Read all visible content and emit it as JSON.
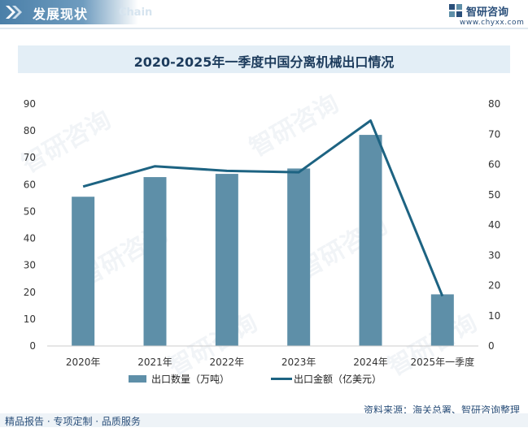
{
  "header": {
    "section_title": "发展现状",
    "section_sub": "Chain",
    "brand_name": "智研咨询",
    "brand_url": "www.chyxx.com"
  },
  "chart_data": {
    "type": "bar",
    "title": "2020-2025年一季度中国分离机械出口情况",
    "categories": [
      "2020年",
      "2021年",
      "2022年",
      "2023年",
      "2024年",
      "2025年一季度"
    ],
    "series": [
      {
        "name": "出口数量（万吨）",
        "kind": "bar",
        "axis": "left",
        "values": [
          55.5,
          62.8,
          64.0,
          66.0,
          78.5,
          19.2
        ],
        "color": "#5e8fa8"
      },
      {
        "name": "出口金额（亿美元）",
        "kind": "line",
        "axis": "right",
        "values": [
          52.7,
          59.4,
          57.9,
          57.4,
          74.5,
          16.5
        ],
        "color": "#1d6382"
      }
    ],
    "y_left": {
      "min": 0,
      "max": 90,
      "step": 10
    },
    "y_right": {
      "min": 0,
      "max": 80,
      "step": 10
    },
    "grid": false,
    "legend_position": "bottom"
  },
  "legend": {
    "bar_label": "出口数量（万吨）",
    "line_label": "出口金额（亿美元）"
  },
  "source": "资料来源：海关总署、智研咨询整理",
  "footer": "精品报告 · 专项定制 · 品质服务",
  "watermark": "智研咨询"
}
